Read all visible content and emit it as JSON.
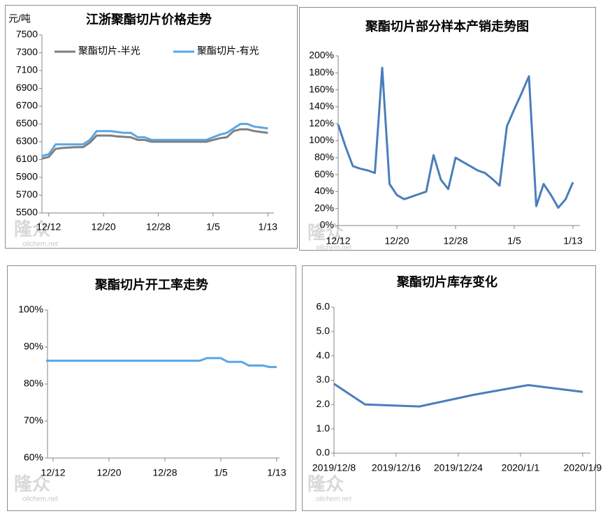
{
  "watermark": {
    "logo": "隆众",
    "url": "oilchem.net"
  },
  "chart_data": [
    {
      "type": "line",
      "title": "江浙聚酯切片价格走势",
      "y_label": "元/吨",
      "categories": [
        null,
        "12/12",
        null,
        null,
        null,
        null,
        null,
        null,
        null,
        "12/20",
        null,
        null,
        null,
        null,
        null,
        null,
        null,
        "12/28",
        null,
        null,
        null,
        null,
        null,
        null,
        null,
        "1/5",
        null,
        null,
        null,
        null,
        null,
        null,
        null,
        "1/13"
      ],
      "series": [
        {
          "name": "聚酯切片-半光",
          "color": "#7f7f7f",
          "values": [
            6110,
            6130,
            6220,
            6230,
            6235,
            6240,
            6240,
            6290,
            6370,
            6370,
            6370,
            6360,
            6355,
            6350,
            6320,
            6320,
            6300,
            6300,
            6300,
            6300,
            6300,
            6300,
            6300,
            6300,
            6300,
            6320,
            6340,
            6350,
            6420,
            6440,
            6440,
            6420,
            6410,
            6400
          ]
        },
        {
          "name": "聚酯切片-有光",
          "color": "#5aa6e3",
          "values": [
            6140,
            6160,
            6270,
            6270,
            6270,
            6270,
            6270,
            6320,
            6420,
            6420,
            6420,
            6410,
            6400,
            6400,
            6350,
            6350,
            6320,
            6320,
            6320,
            6320,
            6320,
            6320,
            6320,
            6320,
            6320,
            6350,
            6380,
            6400,
            6450,
            6500,
            6500,
            6470,
            6460,
            6450
          ]
        }
      ],
      "ylim": [
        5500,
        7500
      ],
      "yticks": [
        5500,
        5700,
        5900,
        6100,
        6300,
        6500,
        6700,
        6900,
        7100,
        7300,
        7500
      ],
      "legend": "top"
    },
    {
      "type": "line",
      "title": "聚酯切片部分样本产销走势图",
      "categories": [
        "12/12",
        null,
        null,
        null,
        null,
        null,
        null,
        null,
        "12/20",
        null,
        null,
        null,
        null,
        null,
        null,
        null,
        "12/28",
        null,
        null,
        null,
        null,
        null,
        null,
        null,
        "1/5",
        null,
        null,
        null,
        null,
        null,
        null,
        null,
        "1/13"
      ],
      "values": [
        119,
        93,
        70,
        67,
        65,
        62,
        186,
        49,
        36,
        31,
        34,
        37,
        40,
        83,
        54,
        43,
        80,
        75,
        70,
        65,
        62,
        55,
        47,
        117,
        137,
        156,
        176,
        23,
        49,
        36,
        21,
        31,
        51
      ],
      "color": "#4a7ebb",
      "ylim": [
        0,
        200
      ],
      "yticks": [
        {
          "value": 0,
          "label": "0%"
        },
        {
          "value": 20,
          "label": "20%"
        },
        {
          "value": 40,
          "label": "40%"
        },
        {
          "value": 60,
          "label": "60%"
        },
        {
          "value": 80,
          "label": "80%"
        },
        {
          "value": 100,
          "label": "100%"
        },
        {
          "value": 120,
          "label": "120%"
        },
        {
          "value": 140,
          "label": "140%"
        },
        {
          "value": 160,
          "label": "160%"
        },
        {
          "value": 180,
          "label": "180%"
        },
        {
          "value": 200,
          "label": "200%"
        }
      ]
    },
    {
      "type": "line",
      "title": "聚酯切片开工率走势",
      "categories": [
        null,
        "12/12",
        null,
        null,
        null,
        null,
        null,
        null,
        null,
        "12/20",
        null,
        null,
        null,
        null,
        null,
        null,
        null,
        "12/28",
        null,
        null,
        null,
        null,
        null,
        null,
        null,
        "1/5",
        null,
        null,
        null,
        null,
        null,
        null,
        null,
        "1/13"
      ],
      "values": [
        86.3,
        86.3,
        86.3,
        86.3,
        86.3,
        86.3,
        86.3,
        86.3,
        86.3,
        86.3,
        86.3,
        86.3,
        86.3,
        86.3,
        86.3,
        86.3,
        86.3,
        86.3,
        86.3,
        86.3,
        86.3,
        86.3,
        86.3,
        87,
        87,
        87,
        86,
        86,
        86,
        85,
        85,
        85,
        84.6,
        84.6
      ],
      "color": "#5aa6e3",
      "ylim": [
        60,
        100
      ],
      "yticks": [
        {
          "value": 60,
          "label": "60%"
        },
        {
          "value": 70,
          "label": "70%"
        },
        {
          "value": 80,
          "label": "80%"
        },
        {
          "value": 90,
          "label": "90%"
        },
        {
          "value": 100,
          "label": "100%"
        }
      ]
    },
    {
      "type": "line",
      "title": "聚酯切片库存变化",
      "x": [
        "2019/12/8",
        "2019/12/12",
        "2019/12/19",
        "2019/12/26",
        "2020/1/2",
        "2020/1/9"
      ],
      "values": [
        2.85,
        2.0,
        1.92,
        2.4,
        2.8,
        2.52
      ],
      "color": "#4a7ebb",
      "xlim": [
        "2019/12/8",
        "2020/1/10"
      ],
      "xticks": [
        "2019/12/8",
        "2019/12/16",
        "2019/12/24",
        "2020/1/1",
        "2020/1/9"
      ],
      "ylim": [
        0,
        6
      ],
      "yticks": [
        {
          "value": 0,
          "label": "0.0"
        },
        {
          "value": 1,
          "label": "1.0"
        },
        {
          "value": 2,
          "label": "2.0"
        },
        {
          "value": 3,
          "label": "3.0"
        },
        {
          "value": 4,
          "label": "4.0"
        },
        {
          "value": 5,
          "label": "5.0"
        },
        {
          "value": 6,
          "label": "6.0"
        }
      ]
    }
  ]
}
